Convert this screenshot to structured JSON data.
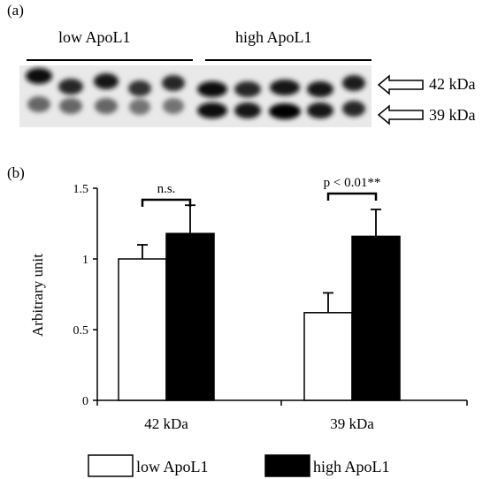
{
  "panel_a": {
    "label": "(a)",
    "groups": [
      "low ApoL1",
      "high ApoL1"
    ],
    "band_labels": [
      "42 kDa",
      "39 kDa"
    ],
    "lanes_per_group": 5
  },
  "panel_b": {
    "label": "(b)"
  },
  "chart_data": {
    "type": "bar",
    "categories": [
      "42 kDa",
      "39 kDa"
    ],
    "series": [
      {
        "name": "low ApoL1",
        "values": [
          1.0,
          0.62
        ],
        "errors": [
          0.1,
          0.14
        ],
        "color": "#ffffff"
      },
      {
        "name": "high ApoL1",
        "values": [
          1.18,
          1.16
        ],
        "errors": [
          0.2,
          0.19
        ],
        "color": "#000000"
      }
    ],
    "ylabel": "Arbitrary unit",
    "ylim": [
      0,
      1.5
    ],
    "yticks": [
      "0",
      "0.5",
      "1",
      "1.5"
    ],
    "ytick_values": [
      0,
      0.5,
      1,
      1.5
    ],
    "annotations": [
      "n.s.",
      "p < 0.01**"
    ],
    "legend_position": "bottom",
    "grid": false
  }
}
